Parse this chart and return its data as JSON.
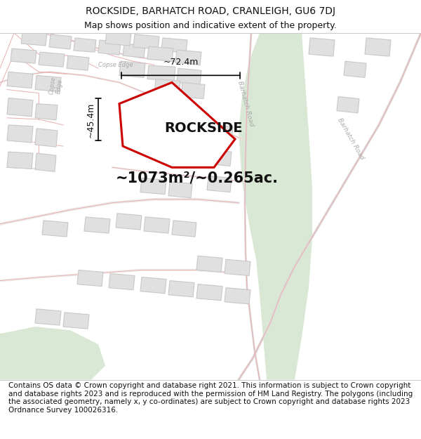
{
  "title": "ROCKSIDE, BARHATCH ROAD, CRANLEIGH, GU6 7DJ",
  "subtitle": "Map shows position and indicative extent of the property.",
  "footer": "Contains OS data © Crown copyright and database right 2021. This information is subject to Crown copyright and database rights 2023 and is reproduced with the permission of HM Land Registry. The polygons (including the associated geometry, namely x, y co-ordinates) are subject to Crown copyright and database rights 2023 Ordnance Survey 100026316.",
  "map_bg": "#ffffff",
  "building_fill": "#e0e0e0",
  "building_edge": "#d0a0a0",
  "plot_edge": "#e8b0b0",
  "green_fill": "#d8e8d4",
  "green_edge": "#c0d4b8",
  "highlight_fill": "#ffffff",
  "highlight_edge": "#cc0000",
  "road_label_color": "#999999",
  "property_label": "ROCKSIDE",
  "area_text": "~1073m²/~0.265ac.",
  "dim_width": "~72.4m",
  "dim_height": "~45.4m",
  "title_fontsize": 10,
  "subtitle_fontsize": 9,
  "footer_fontsize": 7.5,
  "label_fontsize": 14,
  "area_fontsize": 15
}
